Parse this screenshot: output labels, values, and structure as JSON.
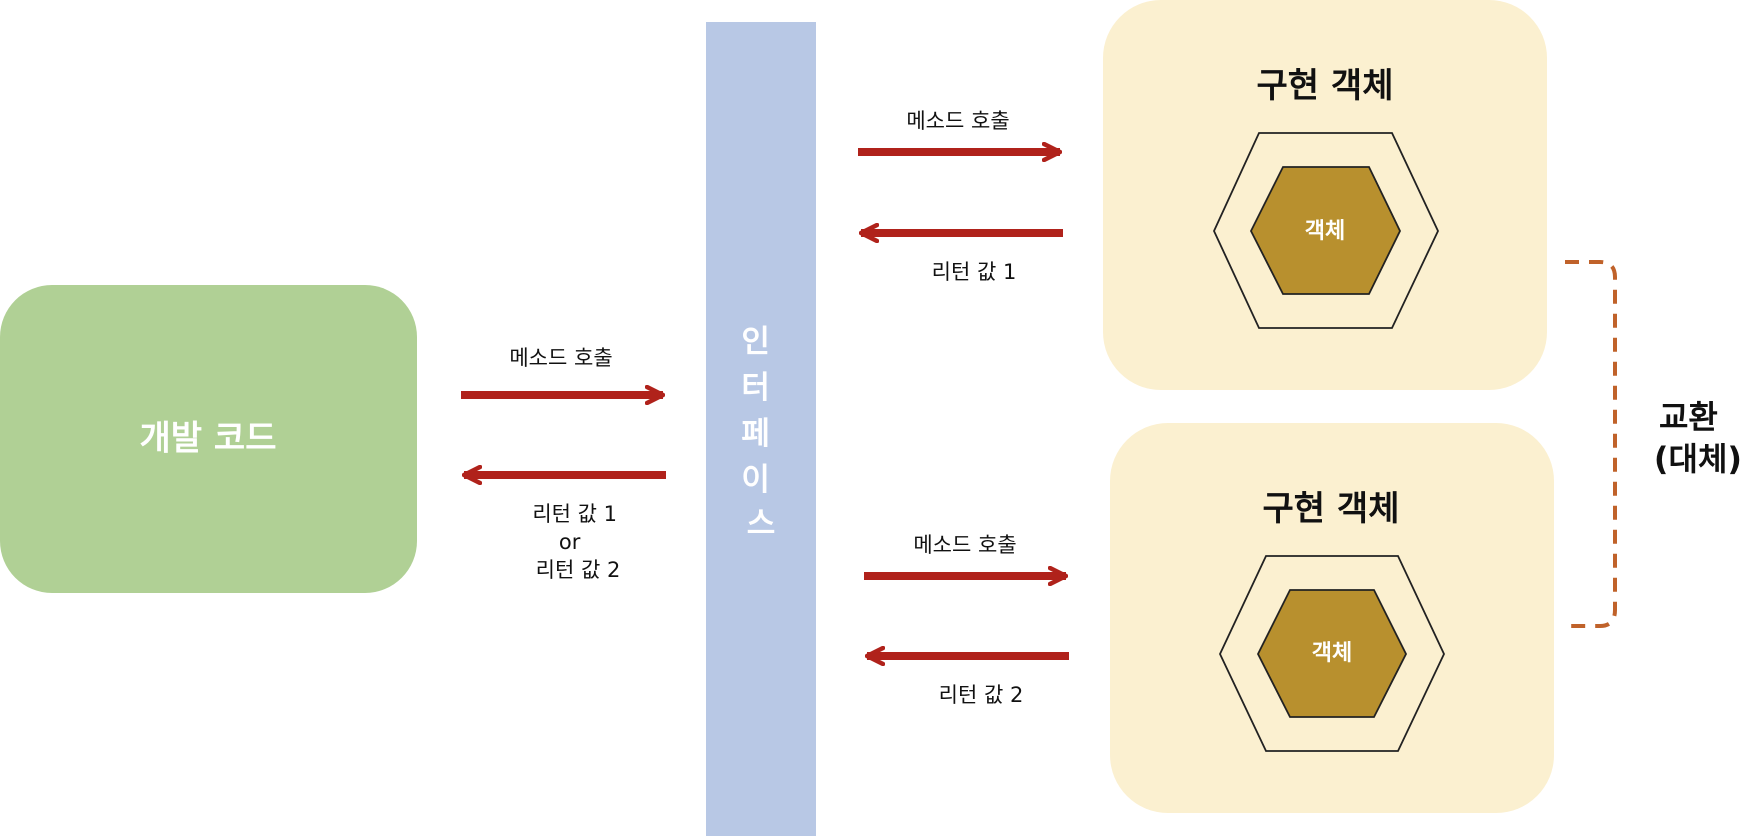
{
  "dev_code": {
    "label": "개발 코드",
    "fill": "#b0d095",
    "text_color": "#ffffff"
  },
  "interface": {
    "label_chars": [
      "인",
      "터",
      "페",
      "이",
      "스"
    ],
    "fill": "#b8c8e5",
    "text_color": "#ffffff"
  },
  "left_flow": {
    "call_label": "메소드 호출",
    "return_lines": [
      "리턴 값 1",
      "or",
      "리턴 값 2"
    ]
  },
  "impl_top": {
    "title": "구현 객체",
    "object_label": "객체",
    "call_label": "메소드 호출",
    "return_label": "리턴 값 1"
  },
  "impl_bottom": {
    "title": "구현 객체",
    "object_label": "객체",
    "call_label": "메소드 호출",
    "return_label": "리턴 값 2"
  },
  "swap": {
    "lines": [
      "교환",
      "(대체)"
    ]
  },
  "colors": {
    "arrow": "#b0221b",
    "impl_box": "#fbf0d0",
    "hex_inner": "#b8902e",
    "hex_outline": "#222222",
    "bracket": "#c0622a"
  }
}
